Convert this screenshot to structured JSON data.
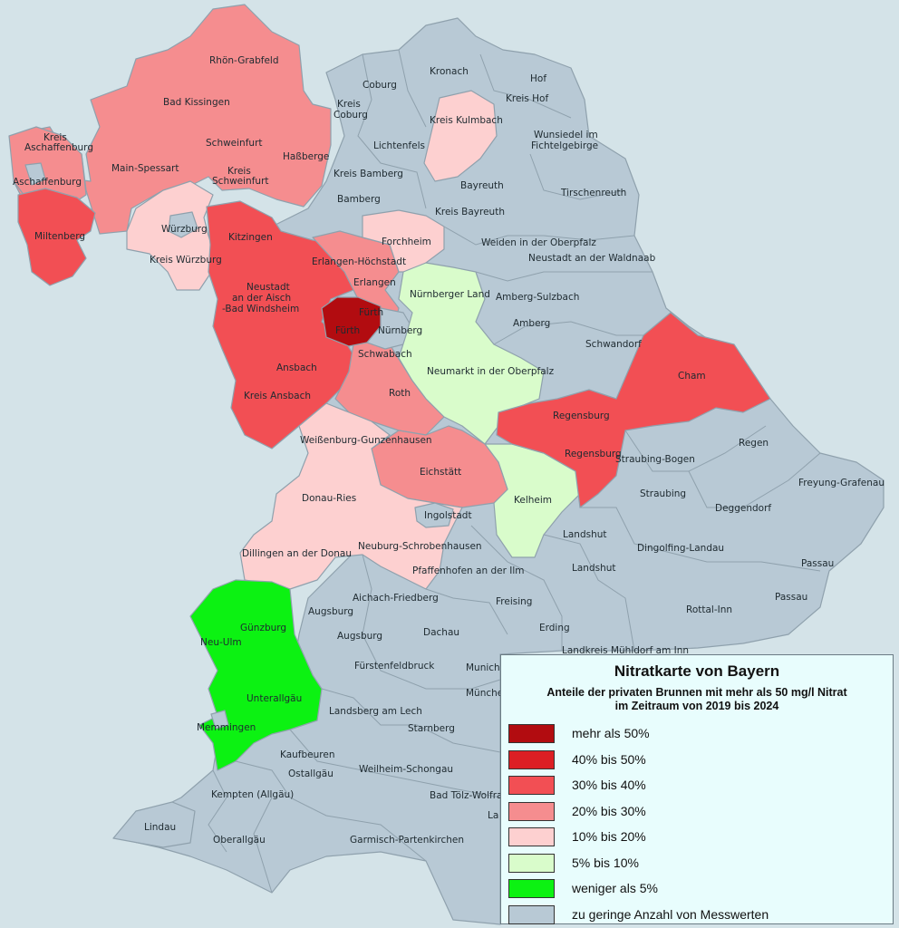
{
  "legend": {
    "title": "Nitratkarte von Bayern",
    "subtitle_line1": "Anteile der privaten Brunnen mit mehr als 50 mg/l Nitrat",
    "subtitle_line2": "im Zeitraum von 2019 bis 2024",
    "items": [
      {
        "label": "mehr als 50%",
        "color": "#b20c10"
      },
      {
        "label": "40% bis 50%",
        "color": "#dc1f24"
      },
      {
        "label": "30% bis 40%",
        "color": "#f24f54"
      },
      {
        "label": "20% bis 30%",
        "color": "#f58d8f"
      },
      {
        "label": "10% bis 20%",
        "color": "#fdd0d0"
      },
      {
        "label": "5% bis 10%",
        "color": "#d9fccb"
      },
      {
        "label": "weniger als 5%",
        "color": "#0cf212"
      },
      {
        "label": "zu geringe Anzahl von Messwerten",
        "color": "#b8c9d5"
      }
    ]
  },
  "colors": {
    "gt50": "#b20c10",
    "p40_50": "#dc1f24",
    "p30_40": "#f24f54",
    "p20_30": "#f58d8f",
    "p10_20": "#fdd0d0",
    "p5_10": "#d9fccb",
    "lt5": "#0cf212",
    "nodata": "#b8c9d5",
    "background": "#d4e3e8"
  },
  "districts": {
    "kronach": "Kronach",
    "coburg": "Coburg",
    "kreis_coburg_1": "Kreis",
    "kreis_coburg_2": "Coburg",
    "hof": "Hof",
    "kreis_hof": "Kreis Hof",
    "kreis_kulmbach": "Kreis Kulmbach",
    "lichtenfels": "Lichtenfels",
    "wunsiedel_1": "Wunsiedel im",
    "wunsiedel_2": "Fichtelgebirge",
    "kreis_bamberg": "Kreis Bamberg",
    "bamberg": "Bamberg",
    "bayreuth": "Bayreuth",
    "tirschenreuth": "Tirschenreuth",
    "kreis_bayreuth": "Kreis Bayreuth",
    "weiden": "Weiden in der Oberpfalz",
    "neustadt_waldnaab": "Neustadt an der Waldnaab",
    "amberg_sulzbach": "Amberg-Sulzbach",
    "amberg": "Amberg",
    "schwandorf": "Schwandorf",
    "cham": "Cham",
    "regensburg_1": "Regensburg",
    "regensburg_2": "Regensburg",
    "straubing_bogen": "Straubing-Bogen",
    "regen": "Regen",
    "freyung": "Freyung-Grafenau",
    "straubing": "Straubing",
    "deggendorf": "Deggendorf",
    "landshut_1": "Landshut",
    "landshut_2": "Landshut",
    "dingolfing": "Dingolfing-Landau",
    "passau_1": "Passau",
    "passau_2": "Passau",
    "rottal_inn": "Rottal-Inn",
    "erding": "Erding",
    "muehldorf": "Landkreis Mühldorf am Inn",
    "freising": "Freising",
    "rhoen": "Rhön-Grabfeld",
    "bad_kissingen": "Bad Kissingen",
    "kreis_aschaffenburg_1": "Kreis",
    "kreis_aschaffenburg_2": "Aschaffenburg",
    "schweinfurt": "Schweinfurt",
    "hassberge": "Haßberge",
    "main_spessart": "Main-Spessart",
    "kreis_schweinfurt_1": "Kreis",
    "kreis_schweinfurt_2": "Schweinfurt",
    "aschaffenburg": "Aschaffenburg",
    "miltenberg": "Miltenberg",
    "wuerzburg": "Würzburg",
    "kreis_wuerzburg": "Kreis Würzburg",
    "kitzingen": "Kitzingen",
    "forchheim": "Forchheim",
    "erlangen_hoechstadt": "Erlangen-Höchstadt",
    "erlangen": "Erlangen",
    "nuernberger_land": "Nürnberger Land",
    "neustadt_aisch_1": "Neustadt",
    "neustadt_aisch_2": "an der Aisch",
    "neustadt_aisch_3": "-Bad Windsheim",
    "fuerth_city": "Fürth",
    "fuerth": "Fürth",
    "nuernberg": "Nürnberg",
    "schwabach": "Schwabach",
    "neumarkt": "Neumarkt in der Oberpfalz",
    "ansbach": "Ansbach",
    "roth": "Roth",
    "kreis_ansbach": "Kreis Ansbach",
    "weissenburg": "Weißenburg-Gunzenhausen",
    "eichstaett": "Eichstätt",
    "kelheim": "Kelheim",
    "donau_ries": "Donau-Ries",
    "ingolstadt": "Ingolstadt",
    "neuburg": "Neuburg-Schrobenhausen",
    "dillingen": "Dillingen an der Donau",
    "pfaffenhofen": "Pfaffenhofen an der Ilm",
    "aichach": "Aichach-Friedberg",
    "augsburg_1": "Augsburg",
    "guenzburg": "Günzburg",
    "neu_ulm": "Neu-Ulm",
    "augsburg_2": "Augsburg",
    "dachau": "Dachau",
    "fuerstenfeldbruck": "Fürstenfeldbruck",
    "munich_1": "Munich",
    "unterallgaeu": "Unterallgäu",
    "muenchen": "Münche",
    "memmingen": "Memmingen",
    "landsberg": "Landsberg am Lech",
    "starnberg": "Starnberg",
    "kaufbeuren": "Kaufbeuren",
    "ostallgaeu": "Ostallgäu",
    "weilheim": "Weilheim-Schongau",
    "kempten": "Kempten (Allgäu)",
    "bad_toelz": "Bad Tölz-Wolfrat",
    "lindau": "Lindau",
    "oberallgaeu": "Oberallgäu",
    "garmisch": "Garmisch-Partenkirchen",
    "la": "La"
  }
}
